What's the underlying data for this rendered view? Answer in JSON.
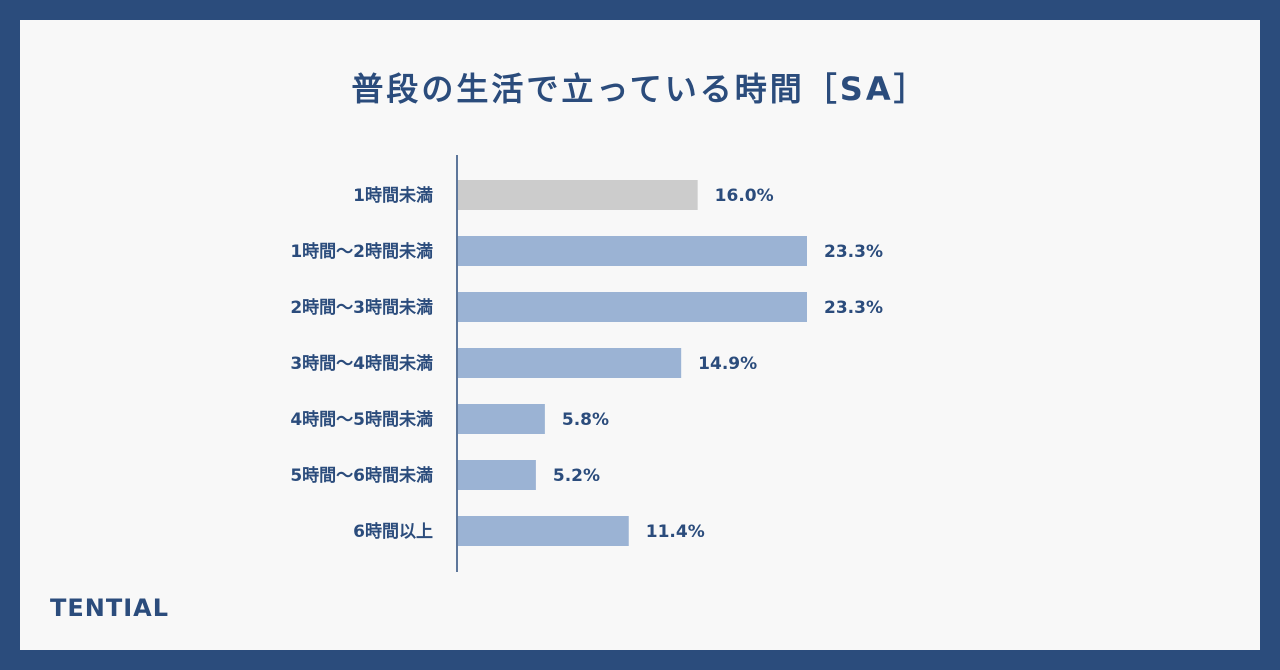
{
  "header": {
    "title": "普段の生活で立っている時間［SA］"
  },
  "footer": {
    "brand": "TENTIAL"
  },
  "colors": {
    "frame": "#2b4c7c",
    "text": "#2b4c7c",
    "bar": "#9bb3d4",
    "highlight_bar": "#cccccc",
    "card": "#f8f8f8"
  },
  "chart_data": {
    "type": "bar",
    "orientation": "horizontal",
    "title": "普段の生活で立っている時間［SA］",
    "categories": [
      "1時間未満",
      "1時間〜2時間未満",
      "2時間〜3時間未満",
      "3時間〜4時間未満",
      "4時間〜5時間未満",
      "5時間〜6時間未満",
      "6時間以上"
    ],
    "values": [
      16.0,
      23.3,
      23.3,
      14.9,
      5.8,
      5.2,
      11.4
    ],
    "value_labels": [
      "16.0%",
      "23.3%",
      "23.3%",
      "14.9%",
      "5.8%",
      "5.2%",
      "11.4%"
    ],
    "highlight_index": 0,
    "unit": "%",
    "xlim": [
      0,
      25
    ],
    "grid": false
  }
}
